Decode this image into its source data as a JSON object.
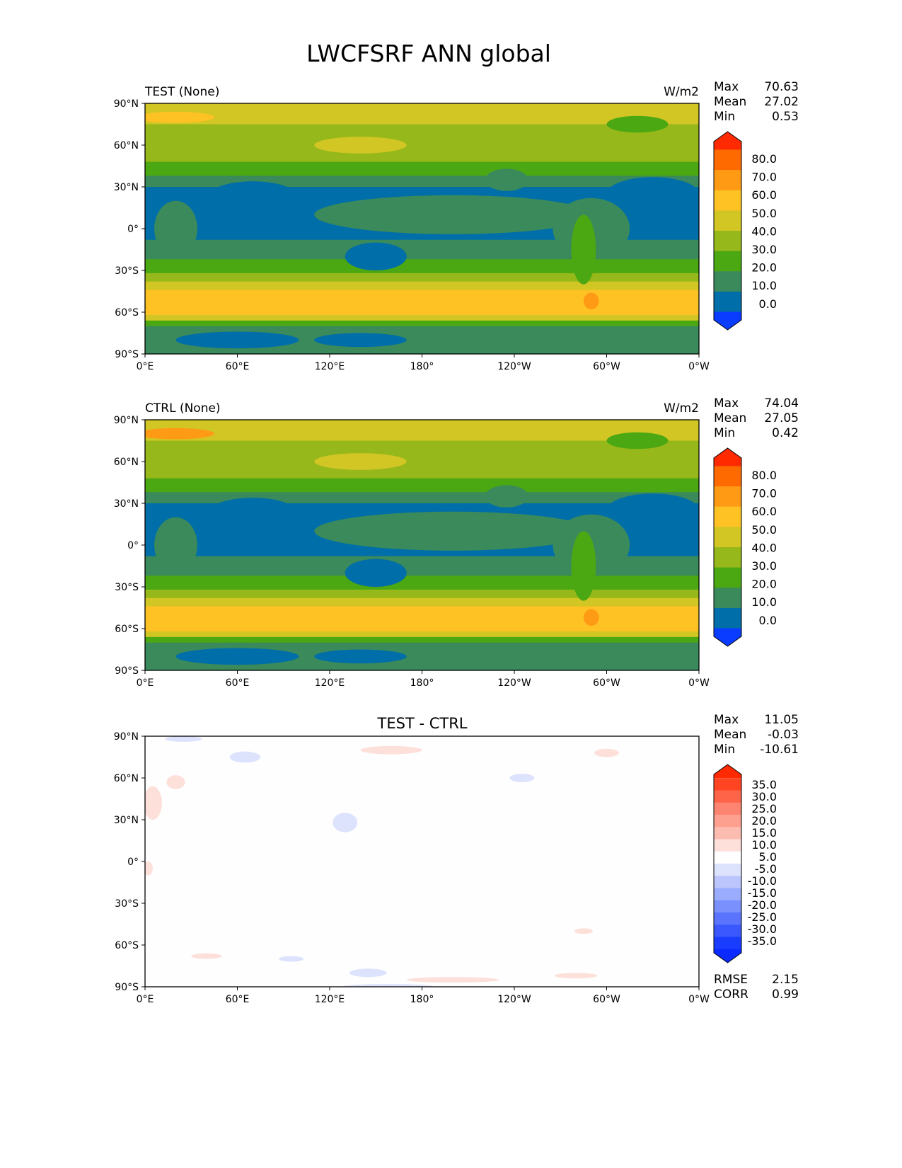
{
  "chart_data": {
    "type": "heatmap",
    "title": "LWCFSRF ANN global",
    "x_ticks": [
      "0°E",
      "60°E",
      "120°E",
      "180°",
      "120°W",
      "60°W",
      "0°W"
    ],
    "y_ticks": [
      "90°N",
      "60°N",
      "30°N",
      "0°",
      "30°S",
      "60°S",
      "90°S"
    ],
    "panels": [
      {
        "id": "test",
        "left_title": "TEST (None)",
        "center_title": "",
        "units": "W/m2",
        "stats": [
          [
            "Max",
            "70.63"
          ],
          [
            "Mean",
            "27.02"
          ],
          [
            "Min",
            "0.53"
          ]
        ],
        "colorbar": {
          "ticks": [
            "80.0",
            "70.0",
            "60.0",
            "50.0",
            "40.0",
            "30.0",
            "20.0",
            "10.0",
            "0.0"
          ],
          "colors": [
            "#ff2a00",
            "#ff6a00",
            "#ff9a14",
            "#fec224",
            "#d2c624",
            "#96b81a",
            "#4ca812",
            "#3a8a5c",
            "#006ea8",
            "#0a3cff"
          ]
        },
        "approx_zonal_levels": [
          [
            90,
            75,
            5
          ],
          [
            75,
            62,
            4
          ],
          [
            62,
            48,
            4
          ],
          [
            48,
            38,
            3
          ],
          [
            38,
            30,
            2
          ],
          [
            30,
            -8,
            1
          ],
          [
            -8,
            -22,
            2
          ],
          [
            -22,
            -32,
            3
          ],
          [
            -32,
            -38,
            4
          ],
          [
            -38,
            -44,
            5
          ],
          [
            -44,
            -62,
            6
          ],
          [
            -62,
            -66,
            5
          ],
          [
            -66,
            -70,
            3
          ],
          [
            -70,
            -90,
            2
          ]
        ]
      },
      {
        "id": "ctrl",
        "left_title": "CTRL (None)",
        "center_title": "",
        "units": "W/m2",
        "stats": [
          [
            "Max",
            "74.04"
          ],
          [
            "Mean",
            "27.05"
          ],
          [
            "Min",
            "0.42"
          ]
        ],
        "colorbar": {
          "ticks": [
            "80.0",
            "70.0",
            "60.0",
            "50.0",
            "40.0",
            "30.0",
            "20.0",
            "10.0",
            "0.0"
          ],
          "colors": [
            "#ff2a00",
            "#ff6a00",
            "#ff9a14",
            "#fec224",
            "#d2c624",
            "#96b81a",
            "#4ca812",
            "#3a8a5c",
            "#006ea8",
            "#0a3cff"
          ]
        },
        "approx_zonal_levels": [
          [
            90,
            75,
            5
          ],
          [
            75,
            62,
            4
          ],
          [
            62,
            48,
            4
          ],
          [
            48,
            38,
            3
          ],
          [
            38,
            30,
            2
          ],
          [
            30,
            -8,
            1
          ],
          [
            -8,
            -22,
            2
          ],
          [
            -22,
            -32,
            3
          ],
          [
            -32,
            -38,
            4
          ],
          [
            -38,
            -44,
            5
          ],
          [
            -44,
            -62,
            6
          ],
          [
            -62,
            -66,
            5
          ],
          [
            -66,
            -70,
            3
          ],
          [
            -70,
            -90,
            2
          ]
        ]
      },
      {
        "id": "diff",
        "left_title": "",
        "center_title": "TEST - CTRL",
        "units": "",
        "stats": [
          [
            "Max",
            "11.05"
          ],
          [
            "Mean",
            "-0.03"
          ],
          [
            "Min",
            "-10.61"
          ]
        ],
        "colorbar": {
          "ticks": [
            "35.0",
            "30.0",
            "25.0",
            "20.0",
            "15.0",
            "10.0",
            "5.0",
            "-5.0",
            "-10.0",
            "-15.0",
            "-20.0",
            "-25.0",
            "-30.0",
            "-35.0"
          ],
          "colors": [
            "#ff2a00",
            "#ff4422",
            "#fd6448",
            "#fd8470",
            "#fda090",
            "#fdbcb0",
            "#fde0da",
            "#ffffff",
            "#dde2fd",
            "#bcc6fd",
            "#9aacfd",
            "#7a90fd",
            "#5a74fd",
            "#3a58fd",
            "#1a3cff",
            "#0a2aff"
          ]
        },
        "extra_stats": [
          [
            "RMSE",
            "2.15"
          ],
          [
            "CORR",
            "0.99"
          ]
        ]
      }
    ]
  }
}
